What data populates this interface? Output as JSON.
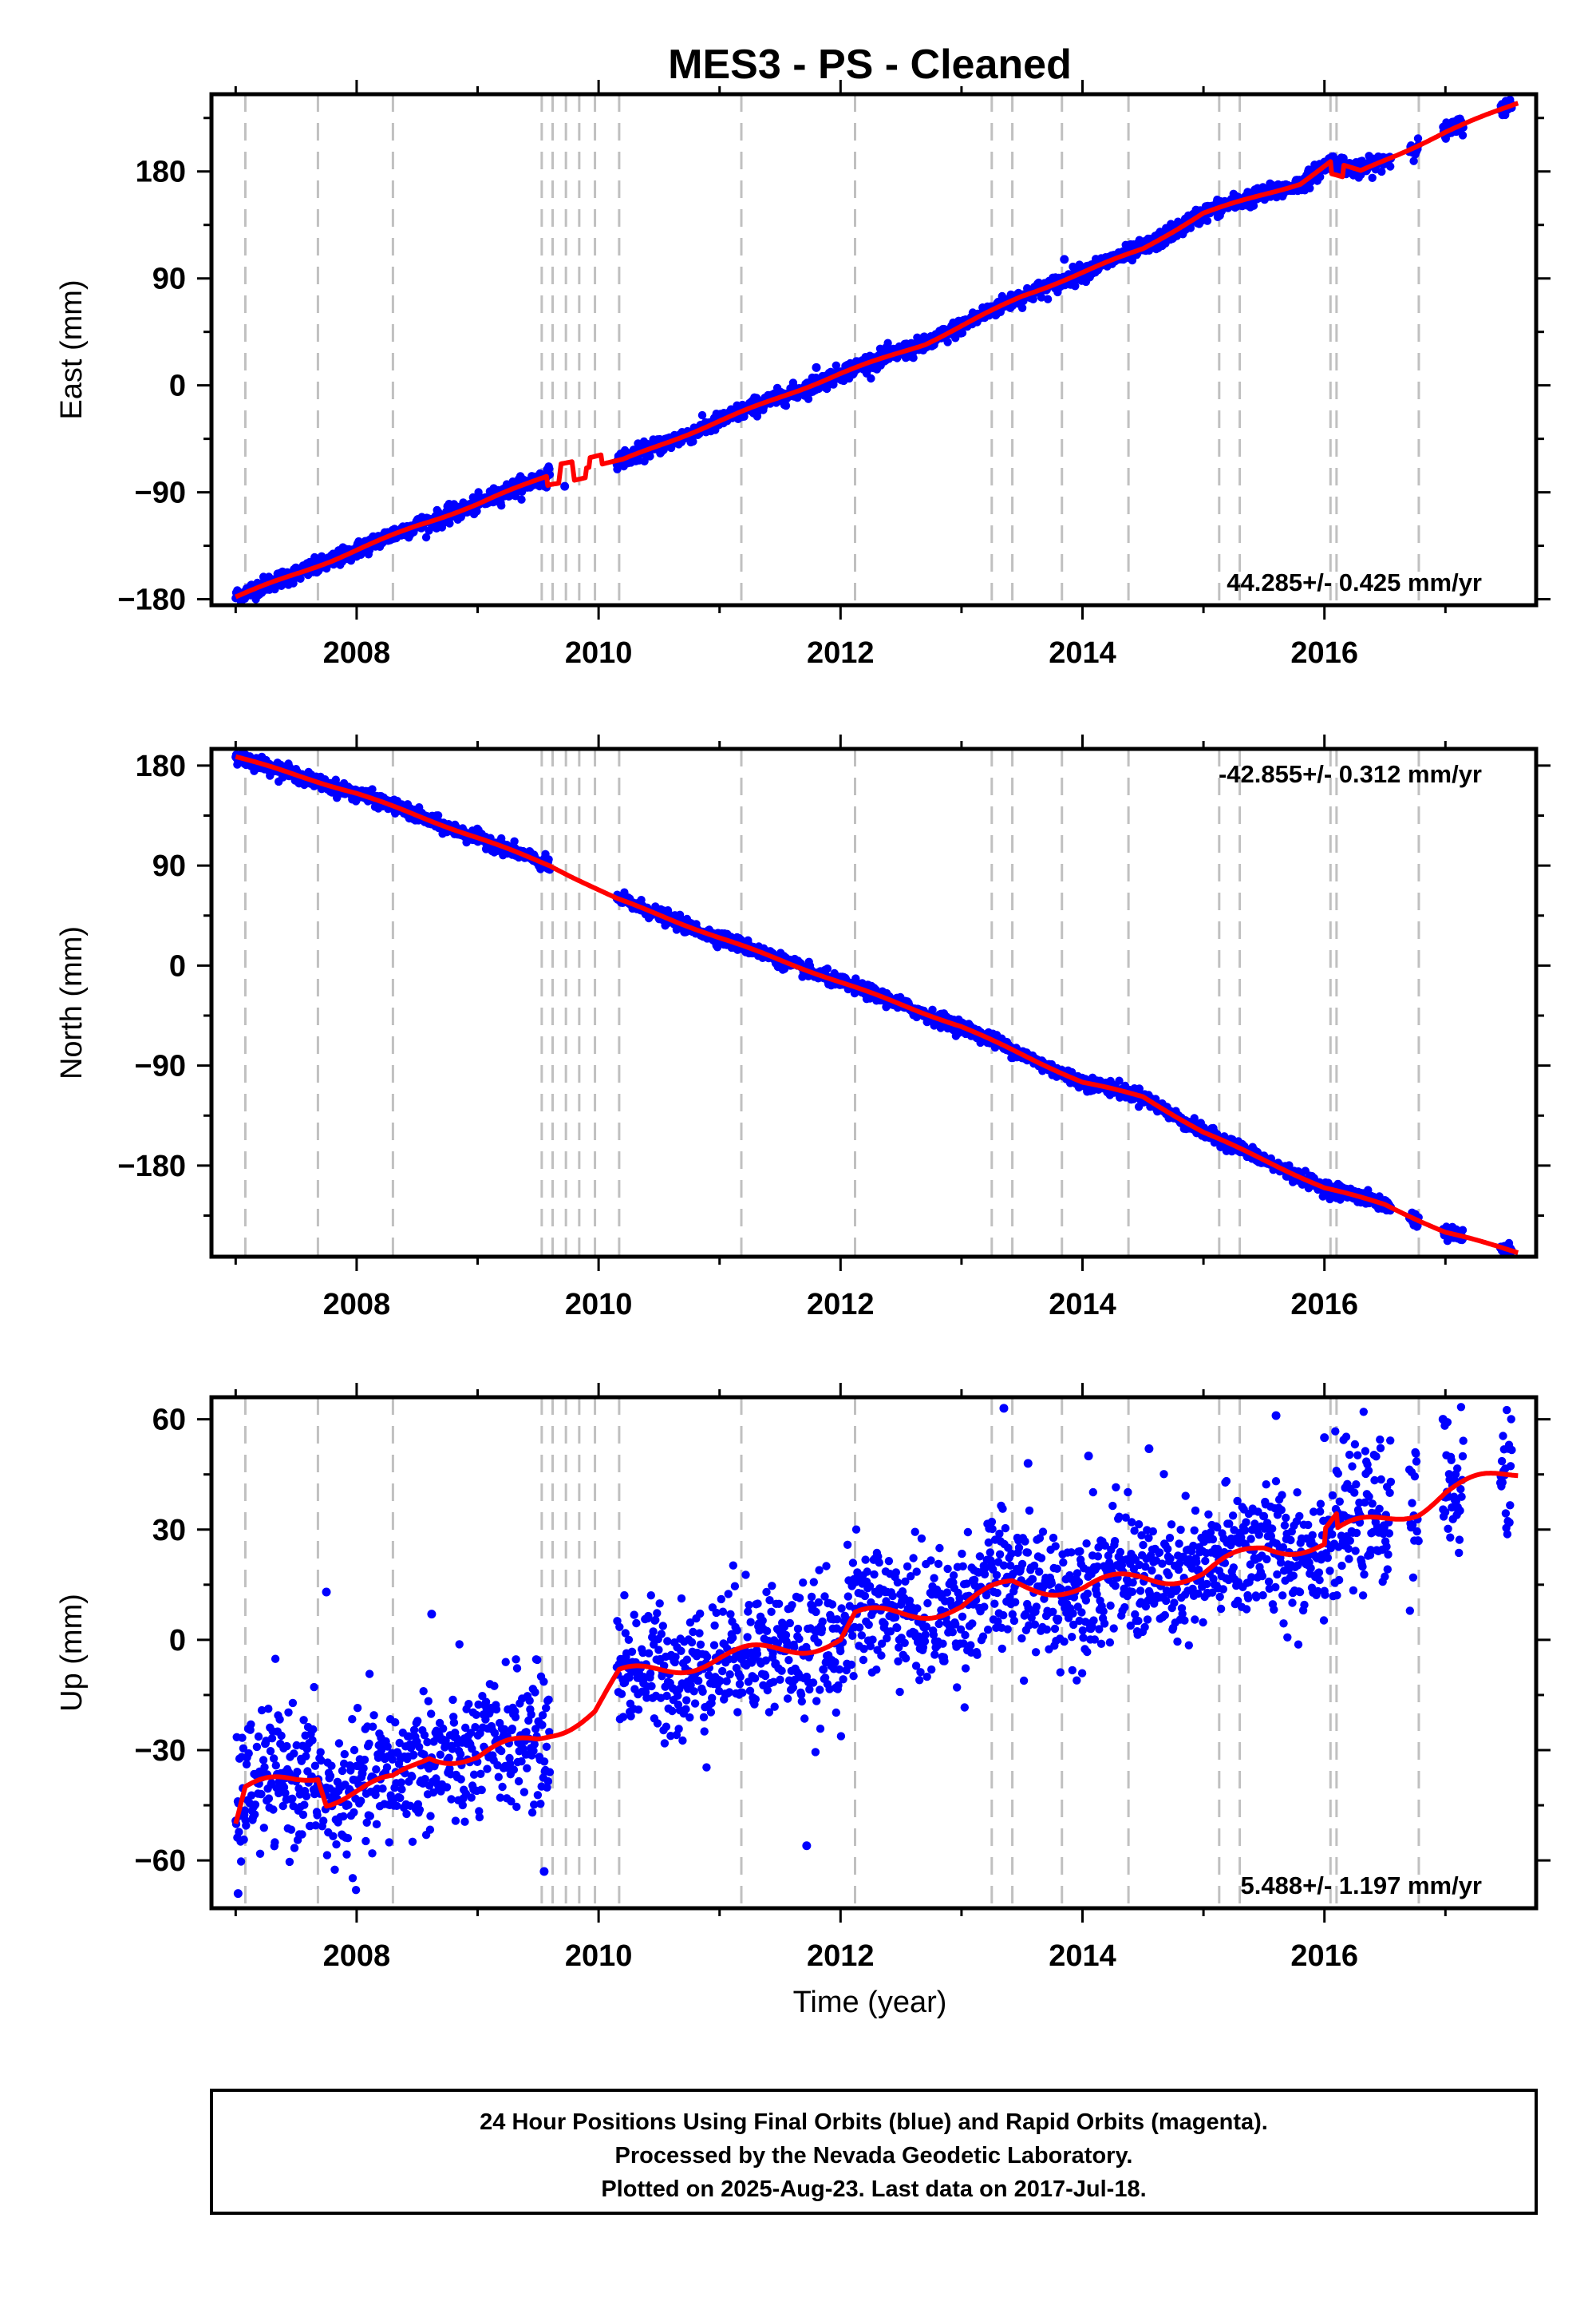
{
  "figure": {
    "title": "MES3  - PS - Cleaned",
    "xlabel": "Time (year)",
    "footer": [
      "24 Hour Positions Using Final Orbits (blue) and Rapid Orbits (magenta).",
      "Processed by the Nevada Geodetic Laboratory.",
      "Plotted on 2025-Aug-23. Last data on 2017-Jul-18."
    ],
    "colors": {
      "data": "#0000ff",
      "model": "#ff0000",
      "event": "#c0c0c0"
    }
  },
  "chart_data": [
    {
      "type": "scatter",
      "ylabel": "East (mm)",
      "rate_label": "44.285+/- 0.425 mm/yr",
      "rate_position": "bottom-right",
      "xlim": [
        2006.8,
        2017.75
      ],
      "ylim": [
        -185,
        245
      ],
      "xticks": [
        2008,
        2010,
        2012,
        2014,
        2016
      ],
      "xtick_labels": [
        "2008",
        "2010",
        "2012",
        "2014",
        "2016"
      ],
      "yticks": [
        -180,
        -90,
        0,
        90,
        180
      ],
      "ytick_labels": [
        "−180",
        "−90",
        "0",
        "90",
        "180"
      ],
      "event_lines": [
        2007.08,
        2007.68,
        2008.3,
        2009.53,
        2009.62,
        2009.73,
        2009.84,
        2009.97,
        2010.17,
        2011.18,
        2012.12,
        2013.25,
        2013.42,
        2013.83,
        2014.38,
        2015.13,
        2015.3,
        2016.05,
        2016.1,
        2016.78
      ],
      "gaps": [
        [
          2009.6,
          2010.15
        ],
        [
          2012.72,
          2012.74
        ],
        [
          2016.55,
          2016.7
        ],
        [
          2016.78,
          2016.98
        ],
        [
          2017.15,
          2017.45
        ]
      ],
      "trend": [
        [
          2007.0,
          -178
        ],
        [
          2007.8,
          -147
        ],
        [
          2008.5,
          -118
        ],
        [
          2009.0,
          -100
        ],
        [
          2009.6,
          -75
        ],
        [
          2010.2,
          -63
        ],
        [
          2011.0,
          -30
        ],
        [
          2012.0,
          10
        ],
        [
          2012.7,
          35
        ],
        [
          2013.5,
          75
        ],
        [
          2014.5,
          115
        ],
        [
          2015.0,
          145
        ],
        [
          2015.8,
          170
        ],
        [
          2016.05,
          188
        ],
        [
          2016.3,
          180
        ],
        [
          2017.0,
          213
        ],
        [
          2017.6,
          238
        ]
      ],
      "model_steps": [
        [
          2009.62,
          -8
        ],
        [
          2009.73,
          8
        ],
        [
          2009.84,
          -8
        ],
        [
          2009.97,
          8
        ],
        [
          2016.1,
          -10
        ]
      ],
      "noise": 3.5,
      "outliers": [
        [
          2009.72,
          -85
        ],
        [
          2011.8,
          15
        ],
        [
          2013.85,
          106
        ]
      ]
    },
    {
      "type": "scatter",
      "ylabel": "North (mm)",
      "rate_label": "-42.855+/- 0.312 mm/yr",
      "rate_position": "top-right",
      "xlim": [
        2006.8,
        2017.75
      ],
      "ylim": [
        -262,
        195
      ],
      "xticks": [
        2008,
        2010,
        2012,
        2014,
        2016
      ],
      "xtick_labels": [
        "2008",
        "2010",
        "2012",
        "2014",
        "2016"
      ],
      "yticks": [
        -180,
        -90,
        0,
        90,
        180
      ],
      "ytick_labels": [
        "−180",
        "−90",
        "0",
        "90",
        "180"
      ],
      "event_lines": [
        2007.08,
        2007.68,
        2008.3,
        2009.53,
        2009.62,
        2009.73,
        2009.84,
        2009.97,
        2010.17,
        2011.18,
        2012.12,
        2013.25,
        2013.42,
        2013.83,
        2014.38,
        2015.13,
        2015.3,
        2016.05,
        2016.1,
        2016.78
      ],
      "gaps": [
        [
          2009.6,
          2010.15
        ],
        [
          2012.72,
          2012.74
        ],
        [
          2016.55,
          2016.7
        ],
        [
          2016.78,
          2016.98
        ],
        [
          2017.15,
          2017.45
        ]
      ],
      "trend": [
        [
          2007.0,
          188
        ],
        [
          2008.0,
          155
        ],
        [
          2009.0,
          115
        ],
        [
          2009.6,
          90
        ],
        [
          2010.15,
          60
        ],
        [
          2011.0,
          25
        ],
        [
          2012.0,
          -15
        ],
        [
          2013.0,
          -55
        ],
        [
          2014.0,
          -105
        ],
        [
          2014.5,
          -118
        ],
        [
          2015.0,
          -150
        ],
        [
          2016.0,
          -200
        ],
        [
          2016.5,
          -215
        ],
        [
          2017.0,
          -240
        ],
        [
          2017.6,
          -258
        ]
      ],
      "model_steps": [],
      "noise": 3.0,
      "outliers": []
    },
    {
      "type": "scatter",
      "ylabel": "Up (mm)",
      "rate_label": "5.488+/- 1.197 mm/yr",
      "rate_position": "bottom-right",
      "xlim": [
        2006.8,
        2017.75
      ],
      "ylim": [
        -73,
        66
      ],
      "xticks": [
        2008,
        2010,
        2012,
        2014,
        2016
      ],
      "xtick_labels": [
        "2008",
        "2010",
        "2012",
        "2014",
        "2016"
      ],
      "yticks": [
        -60,
        -30,
        0,
        30,
        60
      ],
      "ytick_labels": [
        "−60",
        "−30",
        "0",
        "30",
        "60"
      ],
      "event_lines": [
        2007.08,
        2007.68,
        2008.3,
        2009.53,
        2009.62,
        2009.73,
        2009.84,
        2009.97,
        2010.17,
        2011.18,
        2012.12,
        2013.25,
        2013.42,
        2013.83,
        2014.38,
        2015.13,
        2015.3,
        2016.05,
        2016.1,
        2016.78
      ],
      "gaps": [
        [
          2009.6,
          2010.15
        ],
        [
          2012.72,
          2012.74
        ],
        [
          2016.55,
          2016.7
        ],
        [
          2016.78,
          2016.98
        ],
        [
          2017.15,
          2017.45
        ]
      ],
      "trend": [
        [
          2007.0,
          -50
        ],
        [
          2007.08,
          -41
        ],
        [
          2007.5,
          -38
        ],
        [
          2007.68,
          -36
        ],
        [
          2007.75,
          -43
        ],
        [
          2008.3,
          -39
        ],
        [
          2008.6,
          -31
        ],
        [
          2009.0,
          -32
        ],
        [
          2009.5,
          -27
        ],
        [
          2009.6,
          -25
        ],
        [
          2009.97,
          -19
        ],
        [
          2010.17,
          -10
        ],
        [
          2011.0,
          -5
        ],
        [
          2012.0,
          0
        ],
        [
          2012.12,
          6
        ],
        [
          2013.0,
          9
        ],
        [
          2013.42,
          15
        ],
        [
          2014.0,
          14
        ],
        [
          2014.5,
          17
        ],
        [
          2015.0,
          18
        ],
        [
          2015.5,
          25
        ],
        [
          2016.0,
          26
        ],
        [
          2016.1,
          29
        ],
        [
          2016.78,
          36
        ],
        [
          2017.0,
          40
        ],
        [
          2017.6,
          46
        ]
      ],
      "model_steps": [
        [
          2016.05,
          4
        ]
      ],
      "noise": 9.0,
      "outliers": [
        [
          2007.02,
          -69
        ],
        [
          2007.75,
          13
        ],
        [
          2008.62,
          7
        ],
        [
          2009.55,
          -63
        ],
        [
          2011.72,
          -56
        ],
        [
          2013.35,
          63
        ],
        [
          2013.55,
          48
        ],
        [
          2014.05,
          50
        ],
        [
          2014.55,
          52
        ],
        [
          2015.6,
          61
        ],
        [
          2016.0,
          55
        ],
        [
          2016.98,
          60
        ]
      ]
    }
  ]
}
